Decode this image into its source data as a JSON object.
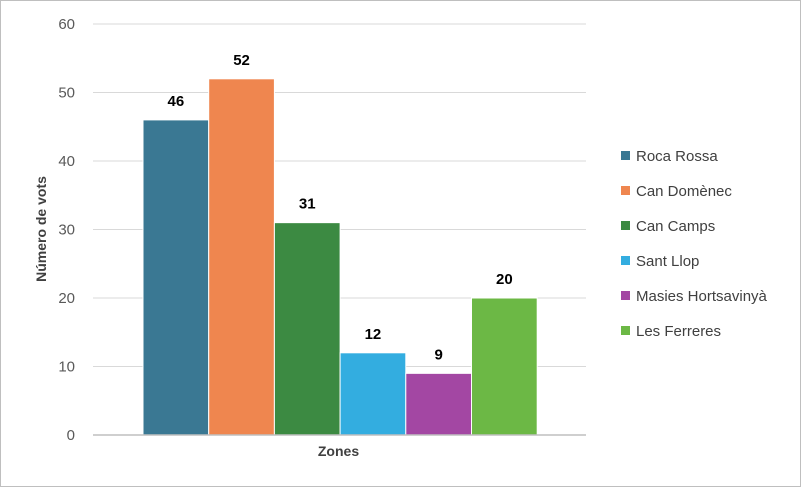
{
  "chart_data": {
    "type": "bar",
    "title": "",
    "xlabel": "Zones",
    "ylabel": "Número de vots",
    "ylim": [
      0,
      60
    ],
    "yticks": [
      0,
      10,
      20,
      30,
      40,
      50,
      60
    ],
    "grid": true,
    "legend_position": "right",
    "categories": [
      "Zones"
    ],
    "series": [
      {
        "name": "Roca Rossa",
        "values": [
          46
        ],
        "color": "#3a7893"
      },
      {
        "name": "Can Domènec",
        "values": [
          52
        ],
        "color": "#ef864f"
      },
      {
        "name": "Can Camps",
        "values": [
          31
        ],
        "color": "#3c8a42"
      },
      {
        "name": "Sant Llop",
        "values": [
          12
        ],
        "color": "#33ade0"
      },
      {
        "name": "Masies Hortsavinyà",
        "values": [
          9
        ],
        "color": "#a347a3"
      },
      {
        "name": "Les Ferreres",
        "values": [
          20
        ],
        "color": "#6cb845"
      }
    ]
  }
}
